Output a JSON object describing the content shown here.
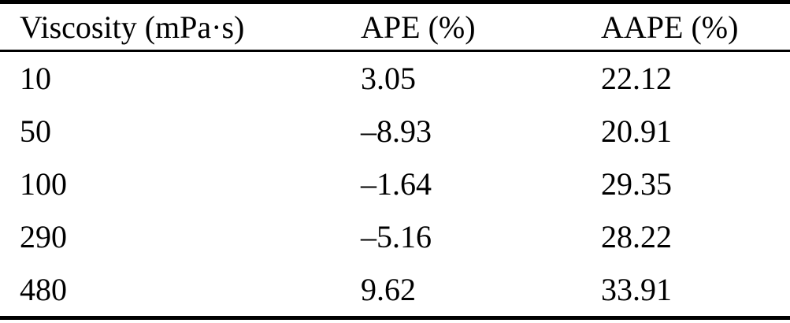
{
  "table": {
    "columns": [
      {
        "label": "Viscosity (mPa·s)"
      },
      {
        "label": "APE (%)"
      },
      {
        "label": "AAPE (%)"
      }
    ],
    "rows": [
      {
        "viscosity": "10",
        "ape": "3.05",
        "aape": "22.12"
      },
      {
        "viscosity": "50",
        "ape": "–8.93",
        "aape": "20.91"
      },
      {
        "viscosity": "100",
        "ape": "–1.64",
        "aape": "29.35"
      },
      {
        "viscosity": "290",
        "ape": "–5.16",
        "aape": "28.22"
      },
      {
        "viscosity": "480",
        "ape": "9.62",
        "aape": "33.91"
      }
    ],
    "colors": {
      "text": "#000000",
      "rule": "#000000",
      "background": "#ffffff"
    }
  }
}
